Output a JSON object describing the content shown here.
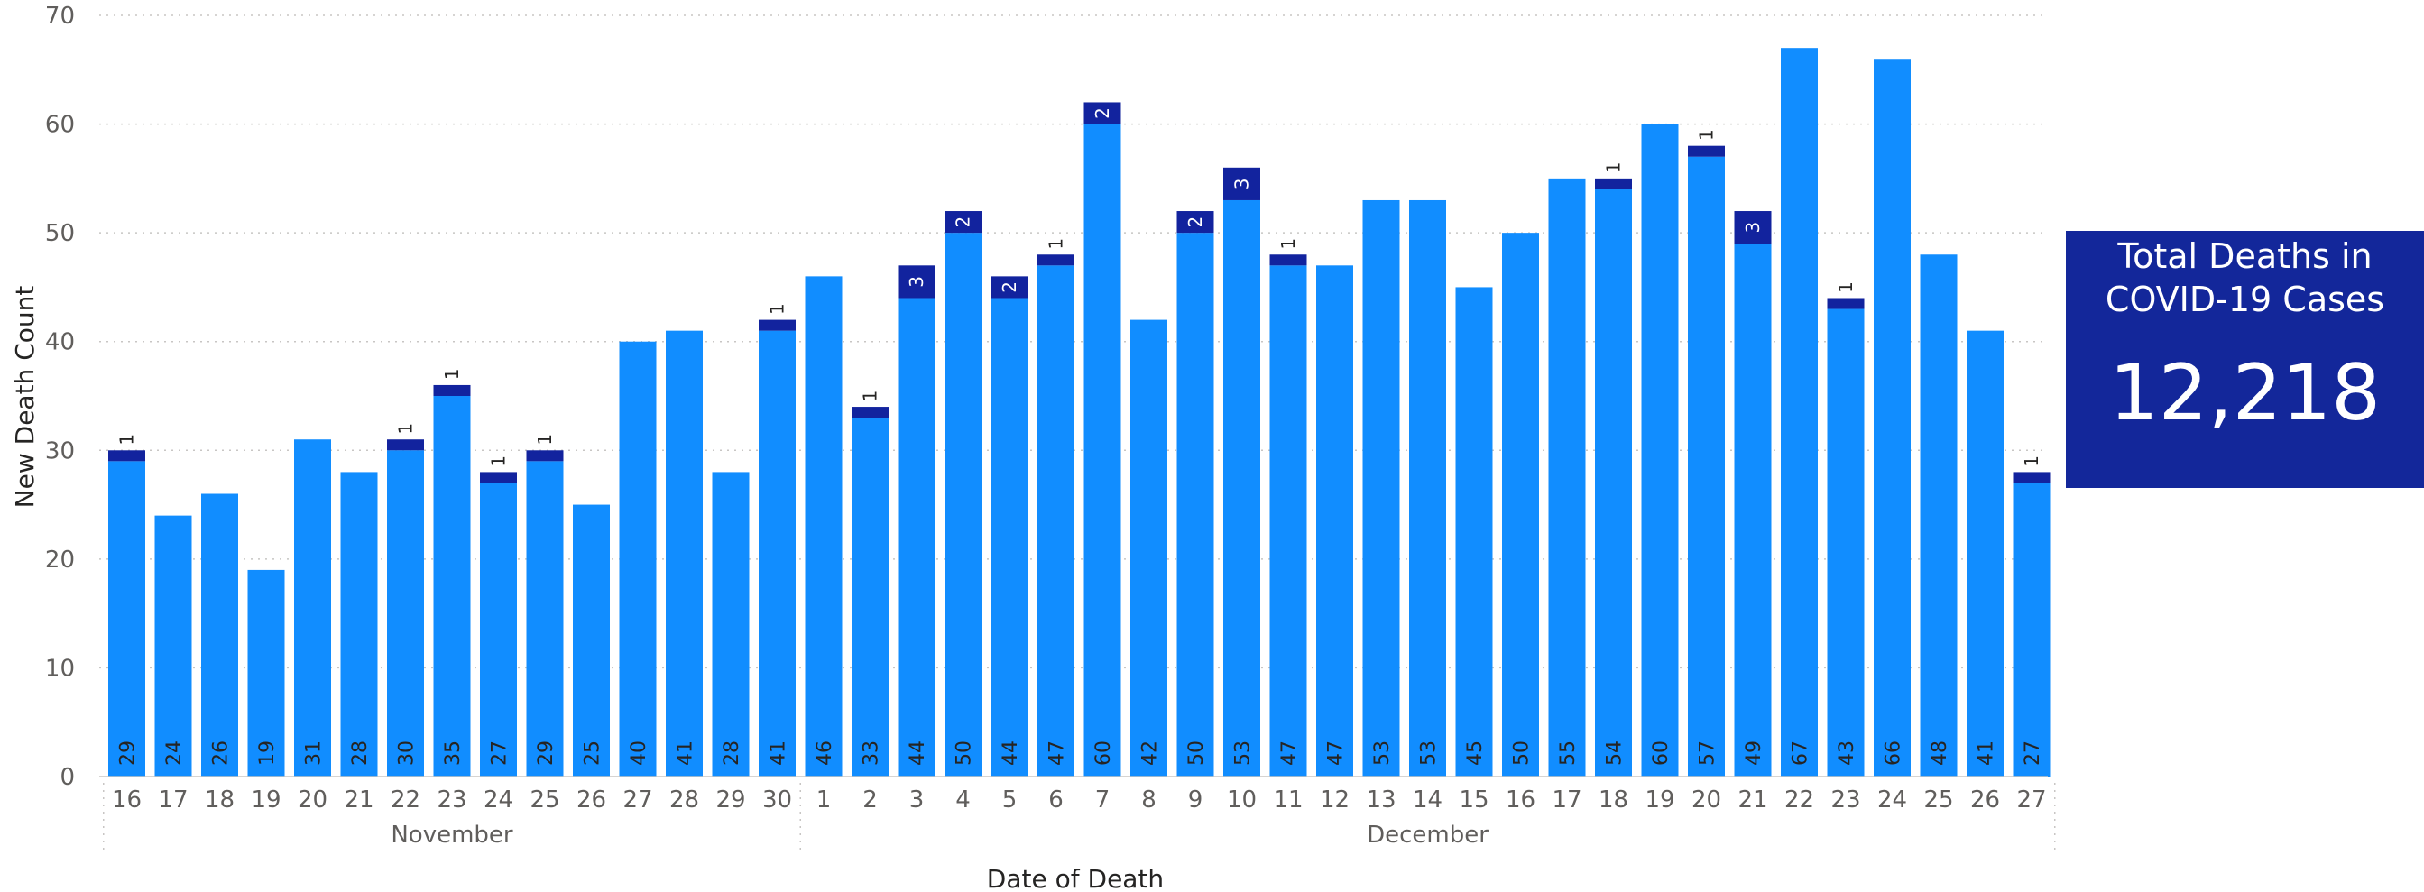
{
  "card": {
    "title": "Total Deaths in COVID-19 Cases",
    "value": "12,218"
  },
  "chart_data": {
    "type": "bar",
    "stacked": true,
    "xlabel": "Date of Death",
    "ylabel": "New Death Count",
    "ylim": [
      0,
      70
    ],
    "yticks": [
      0,
      10,
      20,
      30,
      40,
      50,
      60,
      70
    ],
    "grid": true,
    "legend": "none",
    "groups": [
      {
        "label": "November",
        "from": 0,
        "to": 14
      },
      {
        "label": "December",
        "from": 15,
        "to": 41
      }
    ],
    "categories": [
      "16",
      "17",
      "18",
      "19",
      "20",
      "21",
      "22",
      "23",
      "24",
      "25",
      "26",
      "27",
      "28",
      "29",
      "30",
      "1",
      "2",
      "3",
      "4",
      "5",
      "6",
      "7",
      "8",
      "9",
      "10",
      "11",
      "12",
      "13",
      "14",
      "15",
      "16",
      "17",
      "18",
      "19",
      "20",
      "21",
      "22",
      "23",
      "24",
      "25",
      "26",
      "27"
    ],
    "series": [
      {
        "color": "#118dff",
        "values": [
          29,
          24,
          26,
          19,
          31,
          28,
          30,
          35,
          27,
          29,
          25,
          40,
          41,
          28,
          41,
          46,
          33,
          44,
          50,
          44,
          47,
          60,
          42,
          50,
          53,
          47,
          47,
          53,
          53,
          45,
          50,
          55,
          54,
          60,
          57,
          49,
          67,
          43,
          66,
          48,
          41,
          27
        ]
      },
      {
        "color": "#12239e",
        "values": [
          1,
          0,
          0,
          0,
          0,
          0,
          1,
          1,
          1,
          1,
          0,
          0,
          0,
          0,
          1,
          0,
          1,
          3,
          2,
          2,
          1,
          2,
          0,
          2,
          3,
          1,
          0,
          0,
          0,
          0,
          0,
          0,
          1,
          0,
          1,
          3,
          0,
          1,
          0,
          0,
          0,
          1
        ]
      }
    ]
  }
}
